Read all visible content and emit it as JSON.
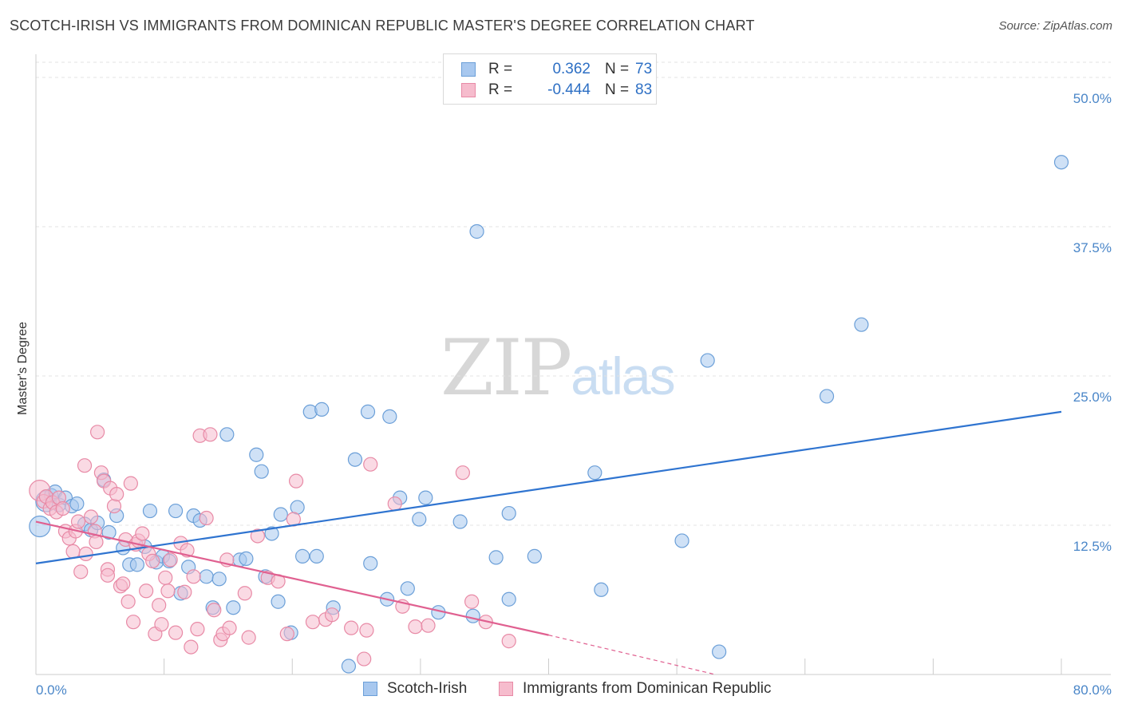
{
  "header": {
    "title": "SCOTCH-IRISH VS IMMIGRANTS FROM DOMINICAN REPUBLIC MASTER'S DEGREE CORRELATION CHART",
    "source": "Source: ZipAtlas.com"
  },
  "watermark": {
    "zip": "ZIP",
    "atlas": "atlas"
  },
  "legend": {
    "rows": [
      {
        "r_label": "R =",
        "r_value": "0.362",
        "n_label": "N =",
        "n_value": "73",
        "color": "#a8c8ef",
        "border": "#6b9fd8"
      },
      {
        "r_label": "R =",
        "r_value": "-0.444",
        "n_label": "N =",
        "n_value": "83",
        "color": "#f6bccd",
        "border": "#e88aa6"
      }
    ]
  },
  "bottom_legend": {
    "items": [
      {
        "label": "Scotch-Irish",
        "color": "#a8c8ef",
        "border": "#6b9fd8"
      },
      {
        "label": "Immigrants from Dominican Republic",
        "color": "#f6bccd",
        "border": "#e88aa6"
      }
    ]
  },
  "chart_data": {
    "type": "scatter",
    "title": "SCOTCH-IRISH VS IMMIGRANTS FROM DOMINICAN REPUBLIC MASTER'S DEGREE CORRELATION CHART",
    "xlabel": "",
    "ylabel": "Master's Degree",
    "xlim": [
      0,
      80
    ],
    "ylim": [
      0,
      50
    ],
    "x_tick_labels": [
      "0.0%",
      "80.0%"
    ],
    "y_ticks": [
      12.5,
      25.0,
      37.5,
      50.0
    ],
    "y_tick_labels": [
      "12.5%",
      "25.0%",
      "37.5%",
      "50.0%"
    ],
    "grid": true,
    "legend_position": "top-center",
    "series": [
      {
        "name": "Scotch-Irish",
        "color": "#6b9fd8",
        "fill": "#a8c8ef",
        "trend": {
          "x": [
            0,
            80
          ],
          "y": [
            9.3,
            22.0
          ],
          "line_color": "#2f74d0"
        },
        "points": [
          [
            0.3,
            12.4
          ],
          [
            0.8,
            14.5
          ],
          [
            1.2,
            15.0
          ],
          [
            1.5,
            15.3
          ],
          [
            1.8,
            14.2
          ],
          [
            2.3,
            14.8
          ],
          [
            2.8,
            14.1
          ],
          [
            3.2,
            14.3
          ],
          [
            3.8,
            12.6
          ],
          [
            4.3,
            12.1
          ],
          [
            4.8,
            12.7
          ],
          [
            5.3,
            16.3
          ],
          [
            5.7,
            11.9
          ],
          [
            6.3,
            13.3
          ],
          [
            6.8,
            10.6
          ],
          [
            7.3,
            9.2
          ],
          [
            7.9,
            9.2
          ],
          [
            8.5,
            10.7
          ],
          [
            8.9,
            13.7
          ],
          [
            9.4,
            9.4
          ],
          [
            9.9,
            9.9
          ],
          [
            10.4,
            9.5
          ],
          [
            10.9,
            13.7
          ],
          [
            11.3,
            6.8
          ],
          [
            11.9,
            9.0
          ],
          [
            12.3,
            13.3
          ],
          [
            12.8,
            12.9
          ],
          [
            13.3,
            8.2
          ],
          [
            13.8,
            5.6
          ],
          [
            14.3,
            8.0
          ],
          [
            14.9,
            20.1
          ],
          [
            15.4,
            5.6
          ],
          [
            15.9,
            9.6
          ],
          [
            16.4,
            9.7
          ],
          [
            17.2,
            18.4
          ],
          [
            17.6,
            17.0
          ],
          [
            17.9,
            8.2
          ],
          [
            18.4,
            11.8
          ],
          [
            18.9,
            6.1
          ],
          [
            19.1,
            13.4
          ],
          [
            19.9,
            3.5
          ],
          [
            20.4,
            14.0
          ],
          [
            20.8,
            9.9
          ],
          [
            21.4,
            22.0
          ],
          [
            21.9,
            9.9
          ],
          [
            22.3,
            22.2
          ],
          [
            23.2,
            5.6
          ],
          [
            24.4,
            0.7
          ],
          [
            24.9,
            18.0
          ],
          [
            25.9,
            22.0
          ],
          [
            26.1,
            9.3
          ],
          [
            27.4,
            6.3
          ],
          [
            27.6,
            21.6
          ],
          [
            28.4,
            14.8
          ],
          [
            29.0,
            7.2
          ],
          [
            29.9,
            13.0
          ],
          [
            30.4,
            14.8
          ],
          [
            31.4,
            5.2
          ],
          [
            33.1,
            12.8
          ],
          [
            34.1,
            4.9
          ],
          [
            34.4,
            37.1
          ],
          [
            35.9,
            9.8
          ],
          [
            36.9,
            13.5
          ],
          [
            36.9,
            6.3
          ],
          [
            38.9,
            9.9
          ],
          [
            43.6,
            16.9
          ],
          [
            44.1,
            7.1
          ],
          [
            50.4,
            11.2
          ],
          [
            52.4,
            26.3
          ],
          [
            53.3,
            1.9
          ],
          [
            61.7,
            23.3
          ],
          [
            64.4,
            29.3
          ],
          [
            80.0,
            42.9
          ]
        ]
      },
      {
        "name": "Immigrants from Dominican Republic",
        "color": "#e88aa6",
        "fill": "#f6bccd",
        "trend": {
          "x": [
            0,
            40
          ],
          "y": [
            12.8,
            3.3
          ],
          "line_color": "#e06090",
          "dashed_to": [
            53,
            0
          ]
        },
        "points": [
          [
            0.3,
            15.4
          ],
          [
            0.6,
            14.5
          ],
          [
            0.8,
            14.9
          ],
          [
            1.1,
            13.9
          ],
          [
            1.3,
            14.4
          ],
          [
            1.6,
            13.6
          ],
          [
            1.8,
            14.8
          ],
          [
            2.1,
            13.9
          ],
          [
            2.3,
            12.0
          ],
          [
            2.6,
            11.4
          ],
          [
            2.9,
            10.3
          ],
          [
            3.1,
            12.0
          ],
          [
            3.3,
            12.8
          ],
          [
            3.5,
            8.6
          ],
          [
            3.8,
            17.5
          ],
          [
            3.9,
            10.1
          ],
          [
            4.3,
            13.2
          ],
          [
            4.6,
            12.0
          ],
          [
            4.7,
            11.1
          ],
          [
            4.8,
            20.3
          ],
          [
            5.1,
            16.9
          ],
          [
            5.3,
            16.2
          ],
          [
            5.6,
            8.8
          ],
          [
            5.6,
            8.3
          ],
          [
            5.8,
            15.6
          ],
          [
            6.1,
            14.1
          ],
          [
            6.3,
            15.1
          ],
          [
            6.6,
            7.4
          ],
          [
            6.8,
            7.6
          ],
          [
            7.0,
            11.3
          ],
          [
            7.2,
            6.1
          ],
          [
            7.4,
            16.0
          ],
          [
            7.6,
            4.4
          ],
          [
            7.8,
            10.9
          ],
          [
            8.0,
            11.2
          ],
          [
            8.3,
            11.8
          ],
          [
            8.6,
            7.0
          ],
          [
            8.8,
            10.1
          ],
          [
            9.1,
            9.5
          ],
          [
            9.3,
            3.4
          ],
          [
            9.6,
            5.8
          ],
          [
            9.8,
            4.2
          ],
          [
            10.1,
            8.1
          ],
          [
            10.3,
            7.0
          ],
          [
            10.5,
            9.6
          ],
          [
            10.9,
            3.5
          ],
          [
            11.3,
            11.0
          ],
          [
            11.6,
            6.9
          ],
          [
            11.8,
            10.4
          ],
          [
            12.1,
            2.3
          ],
          [
            12.3,
            8.2
          ],
          [
            12.6,
            3.8
          ],
          [
            12.8,
            20.0
          ],
          [
            13.3,
            13.1
          ],
          [
            13.6,
            20.1
          ],
          [
            13.9,
            5.4
          ],
          [
            14.4,
            2.9
          ],
          [
            14.6,
            3.4
          ],
          [
            14.9,
            9.6
          ],
          [
            15.1,
            3.9
          ],
          [
            16.3,
            6.8
          ],
          [
            16.6,
            3.1
          ],
          [
            17.3,
            11.6
          ],
          [
            18.1,
            8.1
          ],
          [
            18.9,
            7.8
          ],
          [
            19.6,
            3.4
          ],
          [
            20.1,
            13.0
          ],
          [
            20.3,
            16.2
          ],
          [
            21.6,
            4.4
          ],
          [
            22.6,
            4.6
          ],
          [
            23.1,
            5.0
          ],
          [
            24.6,
            3.9
          ],
          [
            25.6,
            1.3
          ],
          [
            25.8,
            3.7
          ],
          [
            26.1,
            17.6
          ],
          [
            28.0,
            14.3
          ],
          [
            28.6,
            5.7
          ],
          [
            29.6,
            4.0
          ],
          [
            30.6,
            4.1
          ],
          [
            33.3,
            16.9
          ],
          [
            34.0,
            6.1
          ],
          [
            35.1,
            4.4
          ],
          [
            36.9,
            2.8
          ]
        ]
      }
    ]
  }
}
